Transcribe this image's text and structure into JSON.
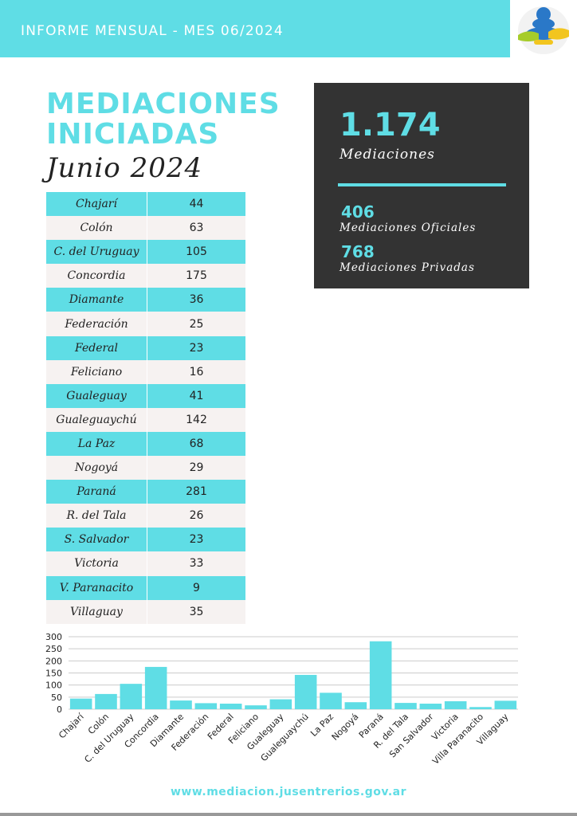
{
  "header": {
    "title": "INFORME MENSUAL - MES 06/2024",
    "logo_icon": "mediation-person-hands-icon"
  },
  "main": {
    "title_line1": "MEDIACIONES",
    "title_line2": "INICIADAS",
    "subtitle": "Junio 2024"
  },
  "table": {
    "rows": [
      {
        "name": "Chajarí",
        "value": "44"
      },
      {
        "name": "Colón",
        "value": "63"
      },
      {
        "name": "C. del Uruguay",
        "value": "105"
      },
      {
        "name": "Concordia",
        "value": "175"
      },
      {
        "name": "Diamante",
        "value": "36"
      },
      {
        "name": "Federación",
        "value": "25"
      },
      {
        "name": "Federal",
        "value": "23"
      },
      {
        "name": "Feliciano",
        "value": "16"
      },
      {
        "name": "Gualeguay",
        "value": "41"
      },
      {
        "name": "Gualeguaychú",
        "value": "142"
      },
      {
        "name": "La Paz",
        "value": "68"
      },
      {
        "name": "Nogoyá",
        "value": "29"
      },
      {
        "name": "Paraná",
        "value": "281"
      },
      {
        "name": "R. del Tala",
        "value": "26"
      },
      {
        "name": "S. Salvador",
        "value": "23"
      },
      {
        "name": "Victoria",
        "value": "33"
      },
      {
        "name": "V. Paranacito",
        "value": "9"
      },
      {
        "name": "Villaguay",
        "value": "35"
      }
    ]
  },
  "stats": {
    "total": "1.174",
    "total_label": "Mediaciones",
    "oficiales_value": "406",
    "oficiales_label": "Mediaciones Oficiales",
    "privadas_value": "768",
    "privadas_label": "Mediaciones Privadas"
  },
  "chart_data": {
    "type": "bar",
    "categories": [
      "Chajarí",
      "Colón",
      "C. del Uruguay",
      "Concordia",
      "Diamante",
      "Federación",
      "Federal",
      "Feliciano",
      "Gualeguay",
      "Gualeguaychú",
      "La Paz",
      "Nogoyá",
      "Paraná",
      "R. del Tala",
      "San Salvador",
      "Victoria",
      "Villa Paranacito",
      "Villaguay"
    ],
    "values": [
      44,
      63,
      105,
      175,
      36,
      25,
      23,
      16,
      41,
      142,
      68,
      29,
      281,
      26,
      23,
      33,
      9,
      35
    ],
    "yticks": [
      "0",
      "50",
      "100",
      "150",
      "200",
      "250",
      "300"
    ],
    "ylim": [
      0,
      300
    ],
    "grid": true,
    "bar_color": "#5fdde5"
  },
  "footer": {
    "url": "www.mediacion.jusentrerios.gov.ar"
  },
  "colors": {
    "accent": "#5fdde5",
    "dark_box": "#333333",
    "row_alt": "#f6f2f1"
  }
}
